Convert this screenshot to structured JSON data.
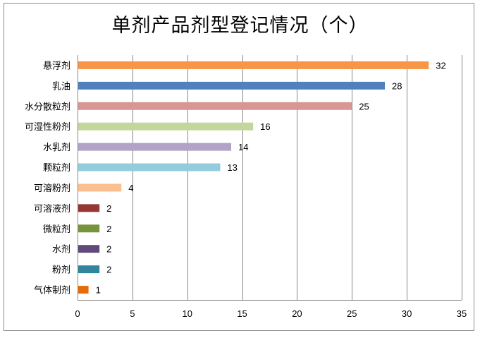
{
  "chart_data": {
    "type": "bar",
    "orientation": "horizontal",
    "title": "单剂产品剂型登记情况（个）",
    "xlabel": "",
    "ylabel": "",
    "xlim": [
      0,
      35
    ],
    "ticks": [
      0,
      5,
      10,
      15,
      20,
      25,
      30,
      35
    ],
    "grid": true,
    "legend": "none",
    "categories": [
      "悬浮剂",
      "乳油",
      "水分散粒剂",
      "可湿性粉剂",
      "水乳剂",
      "颗粒剂",
      "可溶粉剂",
      "可溶液剂",
      "微粒剂",
      "水剂",
      "粉剂",
      "气体制剂"
    ],
    "values": [
      32,
      28,
      25,
      16,
      14,
      13,
      4,
      2,
      2,
      2,
      2,
      1
    ],
    "colors": [
      "#f79646",
      "#4f81bd",
      "#d99694",
      "#c3d69b",
      "#b3a2c7",
      "#93cddd",
      "#fac090",
      "#953735",
      "#77933c",
      "#604a7b",
      "#31859c",
      "#e46c0a"
    ]
  }
}
